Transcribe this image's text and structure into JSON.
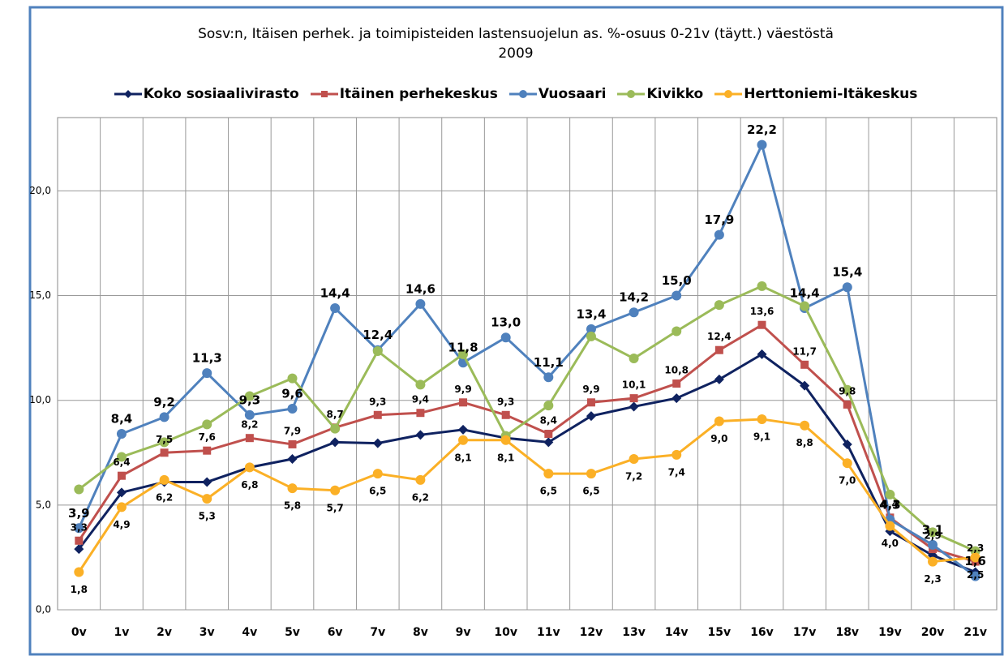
{
  "chart_data": {
    "type": "line",
    "title": "Sosv:n, Itäisen perhek. ja  toimipisteiden  lastensuojelun as. %-osuus 0-21v (täytt.) väestöstä\n2009",
    "categories": [
      "0v",
      "1v",
      "2v",
      "3v",
      "4v",
      "5v",
      "6v",
      "7v",
      "8v",
      "9v",
      "10v",
      "11v",
      "12v",
      "13v",
      "14v",
      "15v",
      "16v",
      "17v",
      "18v",
      "19v",
      "20v",
      "21v"
    ],
    "ylim": [
      0,
      23.5
    ],
    "yticks": [
      {
        "value": 0,
        "label": "0,0"
      },
      {
        "value": 5,
        "label": "5,0"
      },
      {
        "value": 10,
        "label": "10,0"
      },
      {
        "value": 15,
        "label": "15,0"
      },
      {
        "value": 20,
        "label": "20,0"
      }
    ],
    "grid": true,
    "legend": "top",
    "series": [
      {
        "name": "Koko sosiaalivirasto",
        "color": "#0f2260",
        "marker": "diamond",
        "values": [
          2.9,
          5.6,
          6.1,
          6.1,
          6.8,
          7.2,
          8.0,
          7.95,
          8.35,
          8.6,
          8.2,
          8.0,
          9.25,
          9.7,
          10.1,
          11.0,
          12.2,
          10.7,
          7.9,
          3.75,
          2.6,
          1.8
        ]
      },
      {
        "name": "Itäinen perhekeskus",
        "color": "#c0504d",
        "marker": "square",
        "values": [
          3.3,
          6.4,
          7.5,
          7.6,
          8.2,
          7.9,
          8.7,
          9.3,
          9.4,
          9.9,
          9.3,
          8.4,
          9.9,
          10.1,
          10.8,
          12.4,
          13.6,
          11.7,
          9.8,
          4.4,
          2.9,
          2.3
        ],
        "value_labels": [
          "3,3",
          "6,4",
          "7,5",
          "7,6",
          "8,2",
          "7,9",
          "8,7",
          "9,3",
          "9,4",
          "9,9",
          "9,3",
          "8,4",
          "9,9",
          "10,1",
          "10,8",
          "12,4",
          "13,6",
          "11,7",
          "9,8",
          "4,4",
          "2,9",
          "2,3"
        ]
      },
      {
        "name": "Vuosaari",
        "color": "#4f81bd",
        "marker": "circle",
        "values": [
          3.9,
          8.4,
          9.2,
          11.3,
          9.3,
          9.6,
          14.4,
          12.4,
          14.6,
          11.8,
          13.0,
          11.1,
          13.4,
          14.2,
          15.0,
          17.9,
          22.2,
          14.4,
          15.4,
          4.3,
          3.1,
          1.6
        ],
        "value_labels": [
          "3,9",
          "8,4",
          "9,2",
          "11,3",
          "9,3",
          "9,6",
          "14,4",
          "12,4",
          "14,6",
          "11,8",
          "13,0",
          "11,1",
          "13,4",
          "14,2",
          "15,0",
          "17,9",
          "22,2",
          "14,4",
          "15,4",
          "4,3",
          "3,1",
          "1,6"
        ]
      },
      {
        "name": "Kivikko",
        "color": "#9bbb59",
        "marker": "circle",
        "values": [
          5.75,
          7.3,
          8.0,
          8.85,
          10.2,
          11.05,
          8.65,
          12.35,
          10.75,
          12.2,
          8.3,
          9.75,
          13.05,
          12.0,
          13.3,
          14.55,
          15.45,
          14.5,
          10.5,
          5.5,
          3.7,
          2.8
        ]
      },
      {
        "name": "Herttoniemi-Itäkeskus",
        "color": "#fbb026",
        "marker": "circle",
        "values": [
          1.8,
          4.9,
          6.2,
          5.3,
          6.8,
          5.8,
          5.7,
          6.5,
          6.2,
          8.1,
          8.1,
          6.5,
          6.5,
          7.2,
          7.4,
          9.0,
          9.1,
          8.8,
          7.0,
          4.0,
          2.3,
          2.5
        ],
        "value_labels": [
          "1,8",
          "4,9",
          "6,2",
          "5,3",
          "6,8",
          "5,8",
          "5,7",
          "6,5",
          "6,2",
          "8,1",
          "8,1",
          "6,5",
          "6,5",
          "7,2",
          "7,4",
          "9,0",
          "9,1",
          "8,8",
          "7,0",
          "4,0",
          "2,3",
          "2,5"
        ]
      }
    ]
  }
}
